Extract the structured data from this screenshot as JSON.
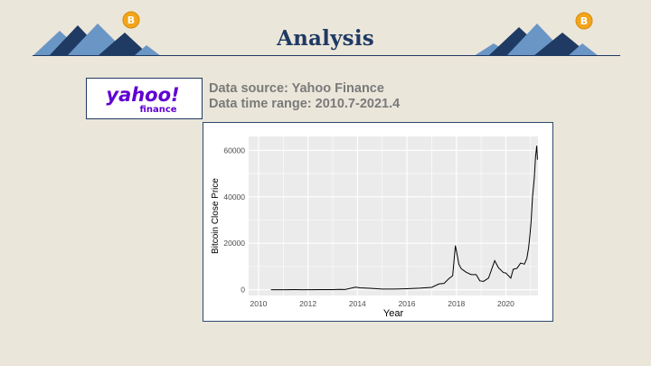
{
  "slide": {
    "title": "Analysis",
    "logo_text": "yahoo!",
    "logo_subtext": "finance",
    "info_line1": "Data source: Yahoo Finance",
    "info_line2": "Data time range: 2010.7-2021.4"
  },
  "colors": {
    "background": "#ebe6da",
    "title": "#1f3a63",
    "mountain_dark": "#1f3a63",
    "mountain_light": "#6a96c6",
    "coin": "#f2a51a",
    "yahoo_purple": "#6001d2",
    "info_text": "#7a7a7a",
    "panel": "#ebebeb",
    "line": "#000000"
  },
  "icons": [
    "mountains-icon",
    "bitcoin-coin-icon"
  ],
  "chart_data": {
    "type": "line",
    "title": "",
    "xlabel": "Year",
    "ylabel": "Bitcoin Close Price",
    "xlim": [
      2009.6,
      2021.3
    ],
    "ylim": [
      -2500,
      66000
    ],
    "xticks": [
      2010,
      2012,
      2014,
      2016,
      2018,
      2020
    ],
    "xtick_labels": [
      "2010",
      "2012",
      "2014",
      "2016",
      "2018",
      "2020"
    ],
    "yticks": [
      0,
      20000,
      40000,
      60000
    ],
    "ytick_labels": [
      "0",
      "20000",
      "40000",
      "60000"
    ],
    "grid": true,
    "legend": "none",
    "series": [
      {
        "x": [
          2010.5,
          2011.0,
          2011.45,
          2011.8,
          2012.5,
          2013.0,
          2013.25,
          2013.5,
          2013.92,
          2014.1,
          2014.5,
          2015.0,
          2015.5,
          2016.0,
          2016.5,
          2017.0,
          2017.3,
          2017.5,
          2017.7,
          2017.85,
          2017.96,
          2018.05,
          2018.1,
          2018.2,
          2018.4,
          2018.6,
          2018.8,
          2018.95,
          2019.1,
          2019.3,
          2019.5,
          2019.55,
          2019.7,
          2019.9,
          2020.0,
          2020.2,
          2020.3,
          2020.45,
          2020.6,
          2020.75,
          2020.85,
          2020.92,
          2020.97,
          2021.02,
          2021.08,
          2021.15,
          2021.2,
          2021.25,
          2021.28
        ],
        "y": [
          0.07,
          0.3,
          15,
          3,
          8,
          20,
          140,
          90,
          1100,
          800,
          600,
          250,
          250,
          430,
          650,
          1000,
          2500,
          2700,
          4800,
          6000,
          19000,
          14000,
          11000,
          9000,
          7500,
          6500,
          6500,
          3800,
          3600,
          5000,
          11000,
          12500,
          9500,
          7400,
          7200,
          5000,
          8800,
          9200,
          11500,
          11000,
          13500,
          18000,
          23000,
          29000,
          40000,
          48000,
          57000,
          62000,
          56000
        ]
      }
    ]
  }
}
